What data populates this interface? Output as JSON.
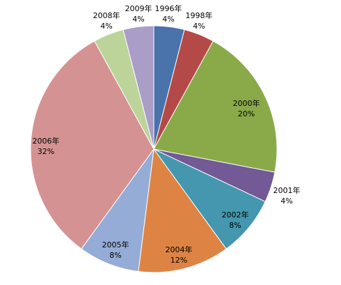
{
  "chart_data": {
    "type": "pie",
    "title": "",
    "start_angle_deg": 0,
    "direction": "clockwise",
    "series": [
      {
        "values": [
          4,
          4,
          20,
          4,
          8,
          12,
          8,
          32,
          4,
          4
        ]
      }
    ],
    "categories": [
      "1996年",
      "1998年",
      "2000年",
      "2001年",
      "2002年",
      "2004年",
      "2005年",
      "2006年",
      "2008年",
      "2009年"
    ],
    "data_labels": [
      "4%",
      "4%",
      "20%",
      "4%",
      "8%",
      "12%",
      "8%",
      "32%",
      "4%",
      "4%"
    ],
    "colors": [
      "#4a72ab",
      "#b34a47",
      "#8aaa4a",
      "#735996",
      "#4497ae",
      "#dd8445",
      "#95acd6",
      "#d49392",
      "#bcd49a",
      "#aa9dc8"
    ],
    "legend": "none"
  }
}
